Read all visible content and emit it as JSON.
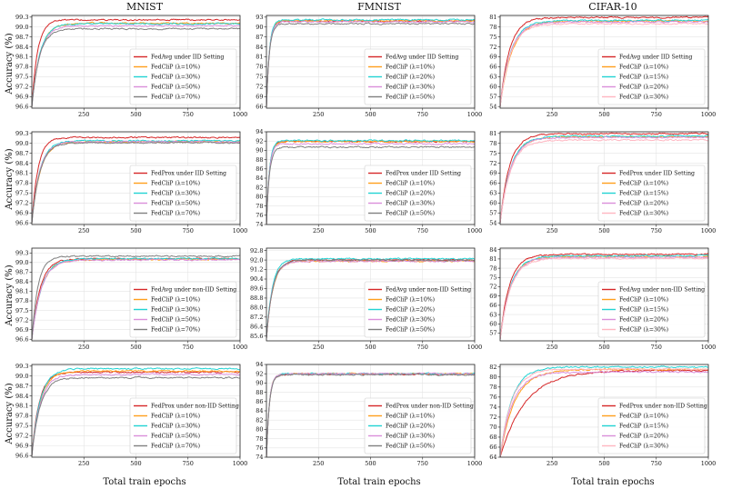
{
  "figure": {
    "column_titles": [
      "MNIST",
      "FMNIST",
      "CIFAR-10"
    ],
    "row_ylabel": "Accuracy (%)",
    "col_xlabel": "Total train epochs"
  },
  "chart_data": [
    {
      "type": "line",
      "title": "MNIST",
      "xlabel": "",
      "ylabel": "Accuracy (%)",
      "xlim": [
        0,
        1000
      ],
      "ylim": [
        96.55,
        99.35
      ],
      "x_ticks": [
        250,
        500,
        750,
        1000
      ],
      "y_ticks": [
        96.6,
        96.9,
        97.2,
        97.5,
        97.8,
        98.1,
        98.4,
        98.7,
        99.0,
        99.3
      ],
      "y_decimals": 1,
      "legend": "lower-right",
      "series": [
        {
          "name": "FedAvg under IID Setting",
          "color": "#d62728",
          "final": 99.22,
          "start": 96.6,
          "rise": 28
        },
        {
          "name": "FedCliP (λ=10%)",
          "color": "#ff9f1c",
          "final": 99.12,
          "start": 96.6,
          "rise": 40
        },
        {
          "name": "FedCliP (λ=30%)",
          "color": "#22d3d3",
          "final": 99.1,
          "start": 96.6,
          "rise": 38
        },
        {
          "name": "FedCliP (λ=50%)",
          "color": "#da8fda",
          "final": 99.04,
          "start": 96.6,
          "rise": 38
        },
        {
          "name": "FedCliP (λ=70%)",
          "color": "#808080",
          "final": 98.95,
          "start": 96.6,
          "rise": 36
        }
      ]
    },
    {
      "type": "line",
      "title": "FMNIST",
      "xlabel": "",
      "ylabel": "",
      "xlim": [
        0,
        1000
      ],
      "ylim": [
        65.5,
        93.5
      ],
      "x_ticks": [
        250,
        500,
        750,
        1000
      ],
      "y_ticks": [
        66,
        69,
        72,
        75,
        78,
        81,
        84,
        87,
        90,
        93
      ],
      "y_decimals": 0,
      "legend": "lower-right",
      "series": [
        {
          "name": "FedAvg under IID Setting",
          "color": "#d62728",
          "final": 91.8,
          "start": 66,
          "rise": 14
        },
        {
          "name": "FedCliP (λ=10%)",
          "color": "#ff9f1c",
          "final": 91.9,
          "start": 66,
          "rise": 14
        },
        {
          "name": "FedCliP (λ=20%)",
          "color": "#22d3d3",
          "final": 92.2,
          "start": 66,
          "rise": 14
        },
        {
          "name": "FedCliP (λ=30%)",
          "color": "#da8fda",
          "final": 91.6,
          "start": 66,
          "rise": 14
        },
        {
          "name": "FedCliP (λ=50%)",
          "color": "#808080",
          "final": 91.0,
          "start": 66,
          "rise": 14
        }
      ]
    },
    {
      "type": "line",
      "title": "CIFAR-10",
      "xlabel": "",
      "ylabel": "",
      "xlim": [
        0,
        1000
      ],
      "ylim": [
        53.5,
        81.5
      ],
      "x_ticks": [
        250,
        500,
        750,
        1000
      ],
      "y_ticks": [
        54,
        57,
        60,
        63,
        66,
        69,
        72,
        75,
        78,
        81
      ],
      "y_decimals": 0,
      "legend": "lower-right",
      "series": [
        {
          "name": "FedAvg under IID Setting",
          "color": "#d62728",
          "final": 80.9,
          "start": 54,
          "rise": 45
        },
        {
          "name": "FedCliP (λ=10%)",
          "color": "#ff9f1c",
          "final": 79.8,
          "start": 54,
          "rise": 55
        },
        {
          "name": "FedCliP (λ=15%)",
          "color": "#22d3d3",
          "final": 80.0,
          "start": 54,
          "rise": 50
        },
        {
          "name": "FedCliP (λ=20%)",
          "color": "#da8fda",
          "final": 79.5,
          "start": 54,
          "rise": 50
        },
        {
          "name": "FedCliP (λ=30%)",
          "color": "#ffb6c1",
          "final": 79.0,
          "start": 54,
          "rise": 50
        }
      ]
    },
    {
      "type": "line",
      "title": "",
      "xlabel": "",
      "ylabel": "Accuracy (%)",
      "xlim": [
        0,
        1000
      ],
      "ylim": [
        96.55,
        99.35
      ],
      "x_ticks": [
        250,
        500,
        750,
        1000
      ],
      "y_ticks": [
        96.6,
        96.9,
        97.2,
        97.5,
        97.8,
        98.1,
        98.4,
        98.7,
        99.0,
        99.3
      ],
      "y_decimals": 1,
      "legend": "lower-right",
      "series": [
        {
          "name": "FedProx under IID Setting",
          "color": "#d62728",
          "final": 99.18,
          "start": 96.6,
          "rise": 30
        },
        {
          "name": "FedCliP (λ=10%)",
          "color": "#ff9f1c",
          "final": 99.05,
          "start": 96.6,
          "rise": 40
        },
        {
          "name": "FedCliP (λ=30%)",
          "color": "#22d3d3",
          "final": 99.08,
          "start": 96.6,
          "rise": 38
        },
        {
          "name": "FedCliP (λ=50%)",
          "color": "#da8fda",
          "final": 99.05,
          "start": 96.6,
          "rise": 38
        },
        {
          "name": "FedCliP (λ=70%)",
          "color": "#808080",
          "final": 99.02,
          "start": 96.6,
          "rise": 38
        }
      ]
    },
    {
      "type": "line",
      "title": "",
      "xlabel": "",
      "ylabel": "",
      "xlim": [
        0,
        1000
      ],
      "ylim": [
        74,
        94
      ],
      "x_ticks": [
        250,
        500,
        750,
        1000
      ],
      "y_ticks": [
        74,
        76,
        78,
        80,
        82,
        84,
        86,
        88,
        90,
        92,
        94
      ],
      "y_decimals": 0,
      "legend": "lower-right",
      "series": [
        {
          "name": "FedProx under IID Setting",
          "color": "#d62728",
          "final": 91.9,
          "start": 74,
          "rise": 14
        },
        {
          "name": "FedCliP (λ=10%)",
          "color": "#ff9f1c",
          "final": 91.9,
          "start": 74,
          "rise": 14
        },
        {
          "name": "FedCliP (λ=20%)",
          "color": "#22d3d3",
          "final": 92.1,
          "start": 74,
          "rise": 14
        },
        {
          "name": "FedCliP (λ=30%)",
          "color": "#da8fda",
          "final": 91.4,
          "start": 74,
          "rise": 14
        },
        {
          "name": "FedCliP (λ=50%)",
          "color": "#808080",
          "final": 90.7,
          "start": 74,
          "rise": 14
        }
      ]
    },
    {
      "type": "line",
      "title": "",
      "xlabel": "",
      "ylabel": "",
      "xlim": [
        0,
        1000
      ],
      "ylim": [
        53.5,
        81.5
      ],
      "x_ticks": [
        250,
        500,
        750,
        1000
      ],
      "y_ticks": [
        54,
        57,
        60,
        63,
        66,
        69,
        72,
        75,
        78,
        81
      ],
      "y_decimals": 0,
      "legend": "lower-right",
      "series": [
        {
          "name": "FedProx under IID Setting",
          "color": "#d62728",
          "final": 80.9,
          "start": 54,
          "rise": 45
        },
        {
          "name": "FedCliP (λ=10%)",
          "color": "#ff9f1c",
          "final": 80.0,
          "start": 54,
          "rise": 50
        },
        {
          "name": "FedCliP (λ=15%)",
          "color": "#22d3d3",
          "final": 80.2,
          "start": 54,
          "rise": 50
        },
        {
          "name": "FedCliP (λ=20%)",
          "color": "#da8fda",
          "final": 79.8,
          "start": 54,
          "rise": 50
        },
        {
          "name": "FedCliP (λ=30%)",
          "color": "#ffb6c1",
          "final": 79.0,
          "start": 54,
          "rise": 50
        }
      ]
    },
    {
      "type": "line",
      "title": "",
      "xlabel": "",
      "ylabel": "Accuracy (%)",
      "xlim": [
        0,
        1000
      ],
      "ylim": [
        96.55,
        99.45
      ],
      "x_ticks": [
        250,
        500,
        750,
        1000
      ],
      "y_ticks": [
        96.6,
        96.9,
        97.2,
        97.5,
        97.8,
        98.1,
        98.4,
        98.7,
        99.0,
        99.3
      ],
      "y_decimals": 1,
      "legend": "lower-right",
      "series": [
        {
          "name": "FedAvg under non-IID Setting",
          "color": "#d62728",
          "final": 99.12,
          "start": 96.6,
          "rise": 40
        },
        {
          "name": "FedCliP (λ=10%)",
          "color": "#ff9f1c",
          "final": 99.1,
          "start": 96.6,
          "rise": 45
        },
        {
          "name": "FedCliP (λ=30%)",
          "color": "#22d3d3",
          "final": 99.12,
          "start": 96.6,
          "rise": 45
        },
        {
          "name": "FedCliP (λ=50%)",
          "color": "#da8fda",
          "final": 99.08,
          "start": 96.6,
          "rise": 45
        },
        {
          "name": "FedCliP (λ=70%)",
          "color": "#808080",
          "final": 99.2,
          "start": 96.6,
          "rise": 30
        }
      ]
    },
    {
      "type": "line",
      "title": "",
      "xlabel": "",
      "ylabel": "",
      "xlim": [
        0,
        1000
      ],
      "ylim": [
        85.2,
        93.0
      ],
      "x_ticks": [
        250,
        500,
        750,
        1000
      ],
      "y_ticks": [
        85.6,
        86.4,
        87.2,
        88.0,
        88.8,
        89.6,
        90.4,
        91.2,
        92.0,
        92.8
      ],
      "y_decimals": 1,
      "legend": "lower-right",
      "series": [
        {
          "name": "FedAvg under non-IID Setting",
          "color": "#d62728",
          "final": 92.0,
          "start": 85.4,
          "rise": 30
        },
        {
          "name": "FedCliP (λ=10%)",
          "color": "#ff9f1c",
          "final": 91.9,
          "start": 85.4,
          "rise": 30
        },
        {
          "name": "FedCliP (λ=20%)",
          "color": "#22d3d3",
          "final": 92.1,
          "start": 85.4,
          "rise": 28
        },
        {
          "name": "FedCliP (λ=30%)",
          "color": "#da8fda",
          "final": 91.9,
          "start": 85.4,
          "rise": 30
        },
        {
          "name": "FedCliP (λ=50%)",
          "color": "#808080",
          "final": 92.0,
          "start": 85.4,
          "rise": 30
        }
      ]
    },
    {
      "type": "line",
      "title": "",
      "xlabel": "",
      "ylabel": "",
      "xlim": [
        0,
        1000
      ],
      "ylim": [
        54.5,
        84.5
      ],
      "x_ticks": [
        250,
        500,
        750,
        1000
      ],
      "y_ticks": [
        57,
        60,
        63,
        66,
        69,
        72,
        75,
        78,
        81,
        84
      ],
      "y_decimals": 0,
      "legend": "lower-right",
      "series": [
        {
          "name": "FedAvg under non-IID Setting",
          "color": "#d62728",
          "final": 82.5,
          "start": 55,
          "rise": 45
        },
        {
          "name": "FedCliP (λ=10%)",
          "color": "#ff9f1c",
          "final": 81.8,
          "start": 55,
          "rise": 50
        },
        {
          "name": "FedCliP (λ=15%)",
          "color": "#22d3d3",
          "final": 82.0,
          "start": 55,
          "rise": 50
        },
        {
          "name": "FedCliP (λ=20%)",
          "color": "#da8fda",
          "final": 81.5,
          "start": 55,
          "rise": 50
        },
        {
          "name": "FedCliP (λ=30%)",
          "color": "#ffb6c1",
          "final": 81.2,
          "start": 55,
          "rise": 50
        }
      ]
    },
    {
      "type": "line",
      "title": "",
      "xlabel": "Total train epochs",
      "ylabel": "Accuracy (%)",
      "xlim": [
        0,
        1000
      ],
      "ylim": [
        96.55,
        99.35
      ],
      "x_ticks": [
        250,
        500,
        750,
        1000
      ],
      "y_ticks": [
        96.6,
        96.9,
        97.2,
        97.5,
        97.8,
        98.1,
        98.4,
        98.7,
        99.0,
        99.3
      ],
      "y_decimals": 1,
      "legend": "lower-right",
      "series": [
        {
          "name": "FedProx under non-IID Setting",
          "color": "#d62728",
          "final": 99.12,
          "start": 96.6,
          "rise": 35
        },
        {
          "name": "FedCliP (λ=10%)",
          "color": "#ff9f1c",
          "final": 99.15,
          "start": 96.6,
          "rise": 40
        },
        {
          "name": "FedCliP (λ=30%)",
          "color": "#22d3d3",
          "final": 99.22,
          "start": 96.6,
          "rise": 40
        },
        {
          "name": "FedCliP (λ=50%)",
          "color": "#da8fda",
          "final": 99.05,
          "start": 96.6,
          "rise": 40
        },
        {
          "name": "FedCliP (λ=70%)",
          "color": "#808080",
          "final": 98.95,
          "start": 96.6,
          "rise": 40
        }
      ]
    },
    {
      "type": "line",
      "title": "",
      "xlabel": "Total train epochs",
      "ylabel": "",
      "xlim": [
        0,
        1000
      ],
      "ylim": [
        74,
        94
      ],
      "x_ticks": [
        250,
        500,
        750,
        1000
      ],
      "y_ticks": [
        74,
        76,
        78,
        80,
        82,
        84,
        86,
        88,
        90,
        92,
        94
      ],
      "y_decimals": 0,
      "legend": "lower-right",
      "series": [
        {
          "name": "FedProx under non-IID Setting",
          "color": "#d62728",
          "final": 91.9,
          "start": 74,
          "rise": 14
        },
        {
          "name": "FedCliP (λ=10%)",
          "color": "#ff9f1c",
          "final": 92.0,
          "start": 74,
          "rise": 14
        },
        {
          "name": "FedCliP (λ=20%)",
          "color": "#22d3d3",
          "final": 92.0,
          "start": 74,
          "rise": 14
        },
        {
          "name": "FedCliP (λ=30%)",
          "color": "#da8fda",
          "final": 92.0,
          "start": 74,
          "rise": 14
        },
        {
          "name": "FedCliP (λ=50%)",
          "color": "#808080",
          "final": 91.8,
          "start": 74,
          "rise": 14
        }
      ]
    },
    {
      "type": "line",
      "title": "",
      "xlabel": "Total train epochs",
      "ylabel": "",
      "xlim": [
        0,
        1000
      ],
      "ylim": [
        64,
        82.5
      ],
      "x_ticks": [
        250,
        500,
        750,
        1000
      ],
      "y_ticks": [
        64,
        66,
        68,
        70,
        72,
        74,
        76,
        78,
        80,
        82
      ],
      "y_decimals": 0,
      "legend": "lower-right",
      "series": [
        {
          "name": "FedProx under non-IID Setting",
          "color": "#d62728",
          "final": 81.3,
          "start": 64,
          "rise": 120
        },
        {
          "name": "FedCliP (λ=10%)",
          "color": "#ff9f1c",
          "final": 81.5,
          "start": 64,
          "rise": 70
        },
        {
          "name": "FedCliP (λ=15%)",
          "color": "#22d3d3",
          "final": 82.0,
          "start": 64,
          "rise": 55
        },
        {
          "name": "FedCliP (λ=20%)",
          "color": "#da8fda",
          "final": 81.0,
          "start": 64,
          "rise": 60
        },
        {
          "name": "FedCliP (λ=30%)",
          "color": "#ffb6c1",
          "final": 81.6,
          "start": 64,
          "rise": 55
        }
      ]
    }
  ]
}
